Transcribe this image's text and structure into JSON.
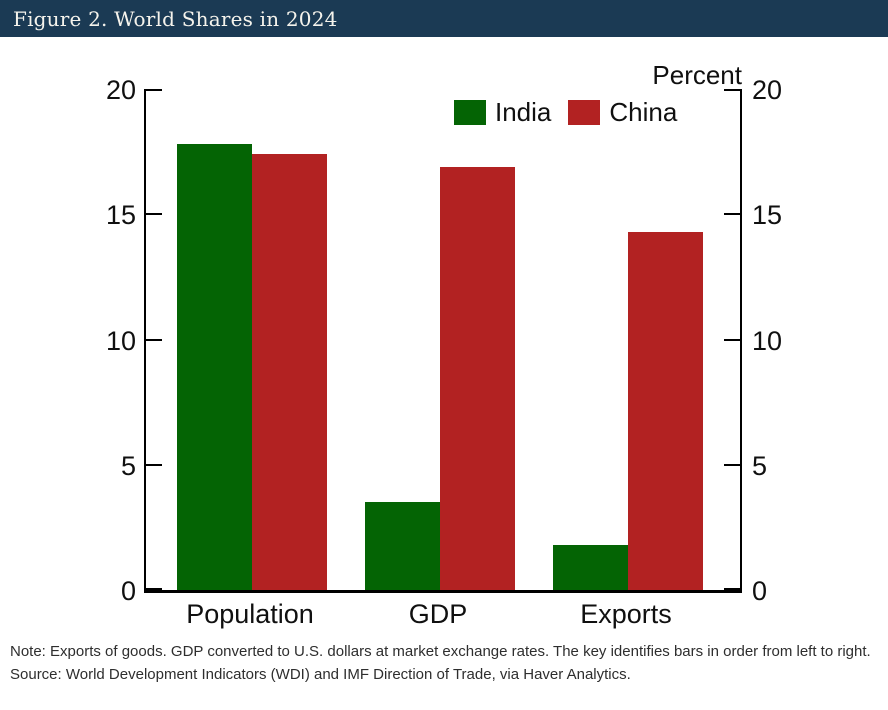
{
  "header": {
    "title": "Figure 2. World Shares in 2024"
  },
  "chart_data": {
    "type": "bar",
    "categories": [
      "Population",
      "GDP",
      "Exports"
    ],
    "series": [
      {
        "name": "India",
        "color": "#046404",
        "values": [
          17.8,
          3.5,
          1.8
        ]
      },
      {
        "name": "China",
        "color": "#b22222",
        "values": [
          17.4,
          16.9,
          14.3
        ]
      }
    ],
    "unit_label": "Percent",
    "ylim": [
      0,
      20
    ],
    "yticks": [
      0,
      5,
      10,
      15,
      20
    ],
    "dual_y_axes": true,
    "grid": false,
    "legend_position": "top-inside"
  },
  "notes": {
    "note": "Note: Exports of goods. GDP converted to U.S. dollars at market exchange rates. The key identifies bars in order from left to right.",
    "source": "Source: World Development Indicators (WDI) and IMF Direction of Trade, via Haver Analytics."
  },
  "colors": {
    "title_bar_bg": "#1b3a54",
    "title_text": "#f5f3ec",
    "axis": "#000000",
    "india_green": "#046404",
    "china_red": "#b22222"
  }
}
